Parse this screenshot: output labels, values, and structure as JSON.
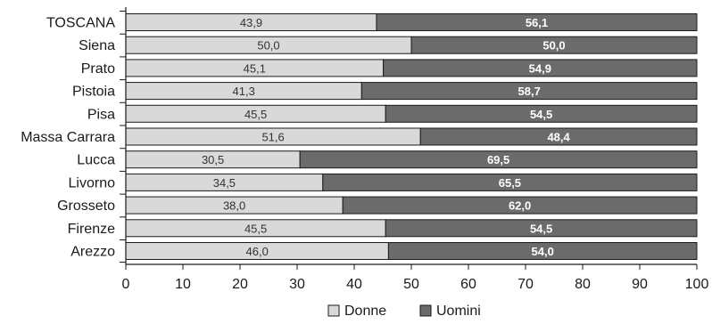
{
  "colors": {
    "donne": "#d9d9d9",
    "uomini": "#6b6b6b",
    "axis": "#1a1a1a",
    "bar_border": "#1a1a1a"
  },
  "chart_data": {
    "type": "bar",
    "orientation": "horizontal",
    "stacked": true,
    "categories": [
      "TOSCANA",
      "Siena",
      "Prato",
      "Pistoia",
      "Pisa",
      "Massa Carrara",
      "Lucca",
      "Livorno",
      "Grosseto",
      "Firenze",
      "Arezzo"
    ],
    "series": [
      {
        "name": "Donne",
        "values": [
          43.9,
          50.0,
          45.1,
          41.3,
          45.5,
          51.6,
          30.5,
          34.5,
          38.0,
          45.5,
          46.0
        ],
        "labels": [
          "43,9",
          "50,0",
          "45,1",
          "41,3",
          "45,5",
          "51,6",
          "30,5",
          "34,5",
          "38,0",
          "45,5",
          "46,0"
        ]
      },
      {
        "name": "Uomini",
        "values": [
          56.1,
          50.0,
          54.9,
          58.7,
          54.5,
          48.4,
          69.5,
          65.5,
          62.0,
          54.5,
          54.0
        ],
        "labels": [
          "56,1",
          "50,0",
          "54,9",
          "58,7",
          "54,5",
          "48,4",
          "69,5",
          "65,5",
          "62,0",
          "54,5",
          "54,0"
        ]
      }
    ],
    "xlim": [
      0,
      100
    ],
    "xticks": [
      0,
      10,
      20,
      30,
      40,
      50,
      60,
      70,
      80,
      90,
      100
    ],
    "title": "",
    "xlabel": "",
    "ylabel": "",
    "grid": false,
    "legend_position": "bottom-center"
  }
}
